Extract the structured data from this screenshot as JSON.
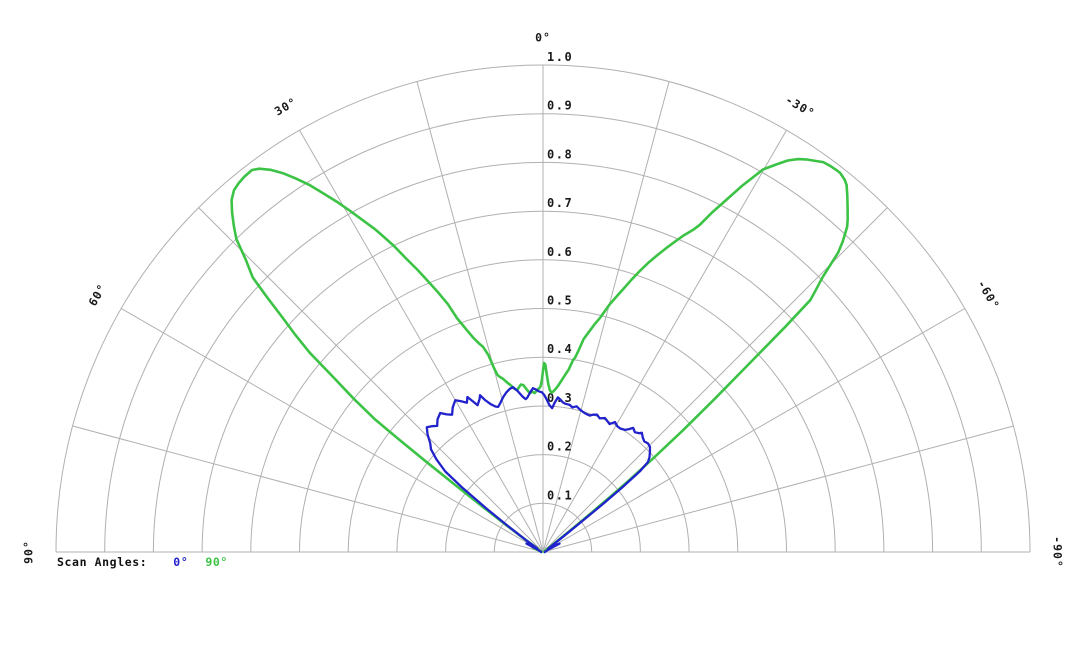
{
  "chart_data": {
    "type": "polar-line",
    "title": "",
    "description": "Half-polar antenna radiation pattern, normalized amplitude vs angle",
    "grid": true,
    "radial_range": [
      0,
      1.0
    ],
    "radial_ticks": [
      0.1,
      0.2,
      0.3,
      0.4,
      0.5,
      0.6,
      0.7,
      0.8,
      0.9,
      1.0
    ],
    "spoke_angles_deg": [
      -90,
      -75,
      -60,
      -45,
      -30,
      -15,
      0,
      15,
      30,
      45,
      60,
      75,
      90
    ],
    "angle_labels": [
      {
        "deg": 0,
        "text": "0°"
      },
      {
        "deg": 30,
        "text": "30°"
      },
      {
        "deg": -30,
        "text": "-30°"
      },
      {
        "deg": 60,
        "text": "60°"
      },
      {
        "deg": -60,
        "text": "-60°"
      },
      {
        "deg": 90,
        "text": "90°"
      },
      {
        "deg": -90,
        "text": "-90°"
      }
    ],
    "grid_color": "#b0b0b0",
    "legend": {
      "title": "Scan Angles:",
      "position": "bottom-left",
      "entries": [
        {
          "label": "0°"
        },
        {
          "label": "90°"
        }
      ]
    },
    "series": [
      {
        "name": "0°",
        "color": "#2222cc",
        "points_deg_r": [
          [
            90,
            0.004
          ],
          [
            78,
            0.005
          ],
          [
            70,
            0.008
          ],
          [
            66,
            0.012
          ],
          [
            63,
            0.038
          ],
          [
            61,
            0.025
          ],
          [
            58,
            0.015
          ],
          [
            55,
            0.045
          ],
          [
            53.5,
            0.09
          ],
          [
            52.5,
            0.145
          ],
          [
            51.5,
            0.21
          ],
          [
            50.5,
            0.26
          ],
          [
            49,
            0.29
          ],
          [
            47.5,
            0.312
          ],
          [
            46,
            0.322
          ],
          [
            44.5,
            0.338
          ],
          [
            43,
            0.35
          ],
          [
            41.5,
            0.345
          ],
          [
            40,
            0.338
          ],
          [
            38.5,
            0.348
          ],
          [
            36.5,
            0.355
          ],
          [
            35,
            0.345
          ],
          [
            33.5,
            0.338
          ],
          [
            32,
            0.35
          ],
          [
            30,
            0.36
          ],
          [
            28.5,
            0.352
          ],
          [
            27,
            0.344
          ],
          [
            26,
            0.354
          ],
          [
            25,
            0.342
          ],
          [
            24,
            0.33
          ],
          [
            22.5,
            0.34
          ],
          [
            21.9,
            0.347
          ],
          [
            20.9,
            0.334
          ],
          [
            19.5,
            0.322
          ],
          [
            18,
            0.314
          ],
          [
            17.2,
            0.312
          ],
          [
            16,
            0.318
          ],
          [
            14.5,
            0.328
          ],
          [
            13,
            0.336
          ],
          [
            11.5,
            0.342
          ],
          [
            10.3,
            0.344
          ],
          [
            9,
            0.335
          ],
          [
            7.5,
            0.322
          ],
          [
            6.5,
            0.316
          ],
          [
            5.9,
            0.318
          ],
          [
            4.7,
            0.328
          ],
          [
            3.5,
            0.337
          ],
          [
            2.5,
            0.334
          ],
          [
            1.5,
            0.33
          ],
          [
            0.4,
            0.328
          ],
          [
            -0.5,
            0.322
          ],
          [
            -1.5,
            0.312
          ],
          [
            -2.5,
            0.302
          ],
          [
            -3.6,
            0.296
          ],
          [
            -4.5,
            0.308
          ],
          [
            -5.5,
            0.319
          ],
          [
            -6.5,
            0.315
          ],
          [
            -7.5,
            0.31
          ],
          [
            -8.5,
            0.308
          ],
          [
            -10.3,
            0.307
          ],
          [
            -11.5,
            0.303
          ],
          [
            -13,
            0.307
          ],
          [
            -14.6,
            0.302
          ],
          [
            -16,
            0.299
          ],
          [
            -17.5,
            0.297
          ],
          [
            -18.9,
            0.296
          ],
          [
            -20,
            0.3
          ],
          [
            -21.5,
            0.303
          ],
          [
            -23,
            0.298
          ],
          [
            -24.8,
            0.303
          ],
          [
            -26,
            0.3
          ],
          [
            -27.5,
            0.296
          ],
          [
            -29,
            0.305
          ],
          [
            -30.5,
            0.3
          ],
          [
            -32,
            0.299
          ],
          [
            -33.9,
            0.302
          ],
          [
            -35,
            0.308
          ],
          [
            -36,
            0.315
          ],
          [
            -37.5,
            0.31
          ],
          [
            -39,
            0.314
          ],
          [
            -39.7,
            0.318
          ],
          [
            -41,
            0.312
          ],
          [
            -42.5,
            0.308
          ],
          [
            -44,
            0.31
          ],
          [
            -45.5,
            0.308
          ],
          [
            -47,
            0.3
          ],
          [
            -48.3,
            0.293
          ],
          [
            -49.4,
            0.284
          ],
          [
            -50.2,
            0.26
          ],
          [
            -50.8,
            0.21
          ],
          [
            -51.3,
            0.16
          ],
          [
            -52,
            0.09
          ],
          [
            -53,
            0.045
          ],
          [
            -55,
            0.018
          ],
          [
            -58,
            0.012
          ],
          [
            -61,
            0.025
          ],
          [
            -63,
            0.038
          ],
          [
            -66,
            0.012
          ],
          [
            -70,
            0.008
          ],
          [
            -78,
            0.005
          ],
          [
            -90,
            0.004
          ]
        ]
      },
      {
        "name": "90°",
        "color": "#3cc346",
        "points_deg_r": [
          [
            90,
            0.003
          ],
          [
            80,
            0.003
          ],
          [
            72,
            0.006
          ],
          [
            67,
            0.02
          ],
          [
            64,
            0.025
          ],
          [
            61,
            0.015
          ],
          [
            58,
            0.012
          ],
          [
            56,
            0.02
          ],
          [
            54.8,
            0.045
          ],
          [
            53.8,
            0.095
          ],
          [
            53.1,
            0.155
          ],
          [
            52.6,
            0.23
          ],
          [
            52.3,
            0.3
          ],
          [
            52,
            0.37
          ],
          [
            51.7,
            0.44
          ],
          [
            51,
            0.5
          ],
          [
            50.2,
            0.56
          ],
          [
            49.5,
            0.63
          ],
          [
            48.7,
            0.68
          ],
          [
            48,
            0.72
          ],
          [
            47.3,
            0.77
          ],
          [
            46.6,
            0.82
          ],
          [
            45.5,
            0.855
          ],
          [
            44.4,
            0.9
          ],
          [
            43.5,
            0.922
          ],
          [
            42.5,
            0.945
          ],
          [
            41.5,
            0.965
          ],
          [
            40.5,
            0.977
          ],
          [
            39.5,
            0.982
          ],
          [
            38.5,
            0.985
          ],
          [
            37.3,
            0.986
          ],
          [
            36.5,
            0.979
          ],
          [
            35.5,
            0.964
          ],
          [
            34.5,
            0.944
          ],
          [
            33.5,
            0.92
          ],
          [
            32.5,
            0.894
          ],
          [
            31.5,
            0.864
          ],
          [
            30.5,
            0.835
          ],
          [
            29.5,
            0.805
          ],
          [
            28.5,
            0.775
          ],
          [
            27.6,
            0.75
          ],
          [
            27.1,
            0.735
          ],
          [
            26,
            0.7
          ],
          [
            25,
            0.665
          ],
          [
            24,
            0.635
          ],
          [
            23.1,
            0.607
          ],
          [
            22,
            0.575
          ],
          [
            21,
            0.545
          ],
          [
            20.2,
            0.512
          ],
          [
            19,
            0.483
          ],
          [
            18,
            0.462
          ],
          [
            17,
            0.447
          ],
          [
            16.3,
            0.439
          ],
          [
            15.5,
            0.42
          ],
          [
            14.9,
            0.39
          ],
          [
            14.4,
            0.375
          ],
          [
            13.8,
            0.37
          ],
          [
            13,
            0.365
          ],
          [
            12,
            0.356
          ],
          [
            11,
            0.349
          ],
          [
            10.5,
            0.345
          ],
          [
            9.7,
            0.339
          ],
          [
            9,
            0.337
          ],
          [
            8.3,
            0.342
          ],
          [
            7.5,
            0.347
          ],
          [
            6.7,
            0.345
          ],
          [
            6,
            0.338
          ],
          [
            5.2,
            0.331
          ],
          [
            4.5,
            0.328
          ],
          [
            3.8,
            0.33
          ],
          [
            3,
            0.327
          ],
          [
            2.3,
            0.331
          ],
          [
            1.7,
            0.335
          ],
          [
            1.2,
            0.337
          ],
          [
            0.8,
            0.341
          ],
          [
            0.4,
            0.352
          ],
          [
            0,
            0.372
          ],
          [
            -0.3,
            0.388
          ],
          [
            -0.7,
            0.385
          ],
          [
            -1.2,
            0.366
          ],
          [
            -1.8,
            0.345
          ],
          [
            -2.4,
            0.333
          ],
          [
            -3,
            0.328
          ],
          [
            -3.6,
            0.33
          ],
          [
            -4.2,
            0.334
          ],
          [
            -5,
            0.341
          ],
          [
            -6,
            0.352
          ],
          [
            -7,
            0.365
          ],
          [
            -8,
            0.378
          ],
          [
            -8.9,
            0.399
          ],
          [
            -9.4,
            0.405
          ],
          [
            -10,
            0.42
          ],
          [
            -10.8,
            0.445
          ],
          [
            -11.8,
            0.462
          ],
          [
            -12.8,
            0.48
          ],
          [
            -13.7,
            0.495
          ],
          [
            -15,
            0.525
          ],
          [
            -16,
            0.545
          ],
          [
            -17,
            0.565
          ],
          [
            -18,
            0.588
          ],
          [
            -19,
            0.61
          ],
          [
            -20,
            0.632
          ],
          [
            -21,
            0.652
          ],
          [
            -22,
            0.672
          ],
          [
            -23,
            0.692
          ],
          [
            -24,
            0.712
          ],
          [
            -25,
            0.73
          ],
          [
            -25.6,
            0.745
          ],
          [
            -26.5,
            0.78
          ],
          [
            -27.5,
            0.815
          ],
          [
            -28.5,
            0.855
          ],
          [
            -29.9,
            0.906
          ],
          [
            -31,
            0.928
          ],
          [
            -32,
            0.948
          ],
          [
            -33,
            0.962
          ],
          [
            -34,
            0.972
          ],
          [
            -35,
            0.98
          ],
          [
            -35.7,
            0.986
          ],
          [
            -36.6,
            0.988
          ],
          [
            -37.5,
            0.989
          ],
          [
            -38.1,
            0.989
          ],
          [
            -39,
            0.984
          ],
          [
            -39.6,
            0.978
          ],
          [
            -40.5,
            0.962
          ],
          [
            -41.5,
            0.944
          ],
          [
            -42.5,
            0.926
          ],
          [
            -43.1,
            0.914
          ],
          [
            -44,
            0.886
          ],
          [
            -44.6,
            0.863
          ],
          [
            -45.5,
            0.805
          ],
          [
            -46.2,
            0.775
          ],
          [
            -46.7,
            0.754
          ],
          [
            -47.1,
            0.678
          ],
          [
            -47.7,
            0.555
          ],
          [
            -48.3,
            0.47
          ],
          [
            -49,
            0.38
          ],
          [
            -49.6,
            0.3
          ],
          [
            -50.2,
            0.23
          ],
          [
            -50.6,
            0.178
          ],
          [
            -51.2,
            0.115
          ],
          [
            -51.8,
            0.07
          ],
          [
            -52.5,
            0.035
          ],
          [
            -53.5,
            0.018
          ],
          [
            -55,
            0.01
          ],
          [
            -58,
            0.006
          ],
          [
            -65,
            0.004
          ],
          [
            -75,
            0.003
          ],
          [
            -90,
            0.003
          ]
        ]
      }
    ]
  }
}
